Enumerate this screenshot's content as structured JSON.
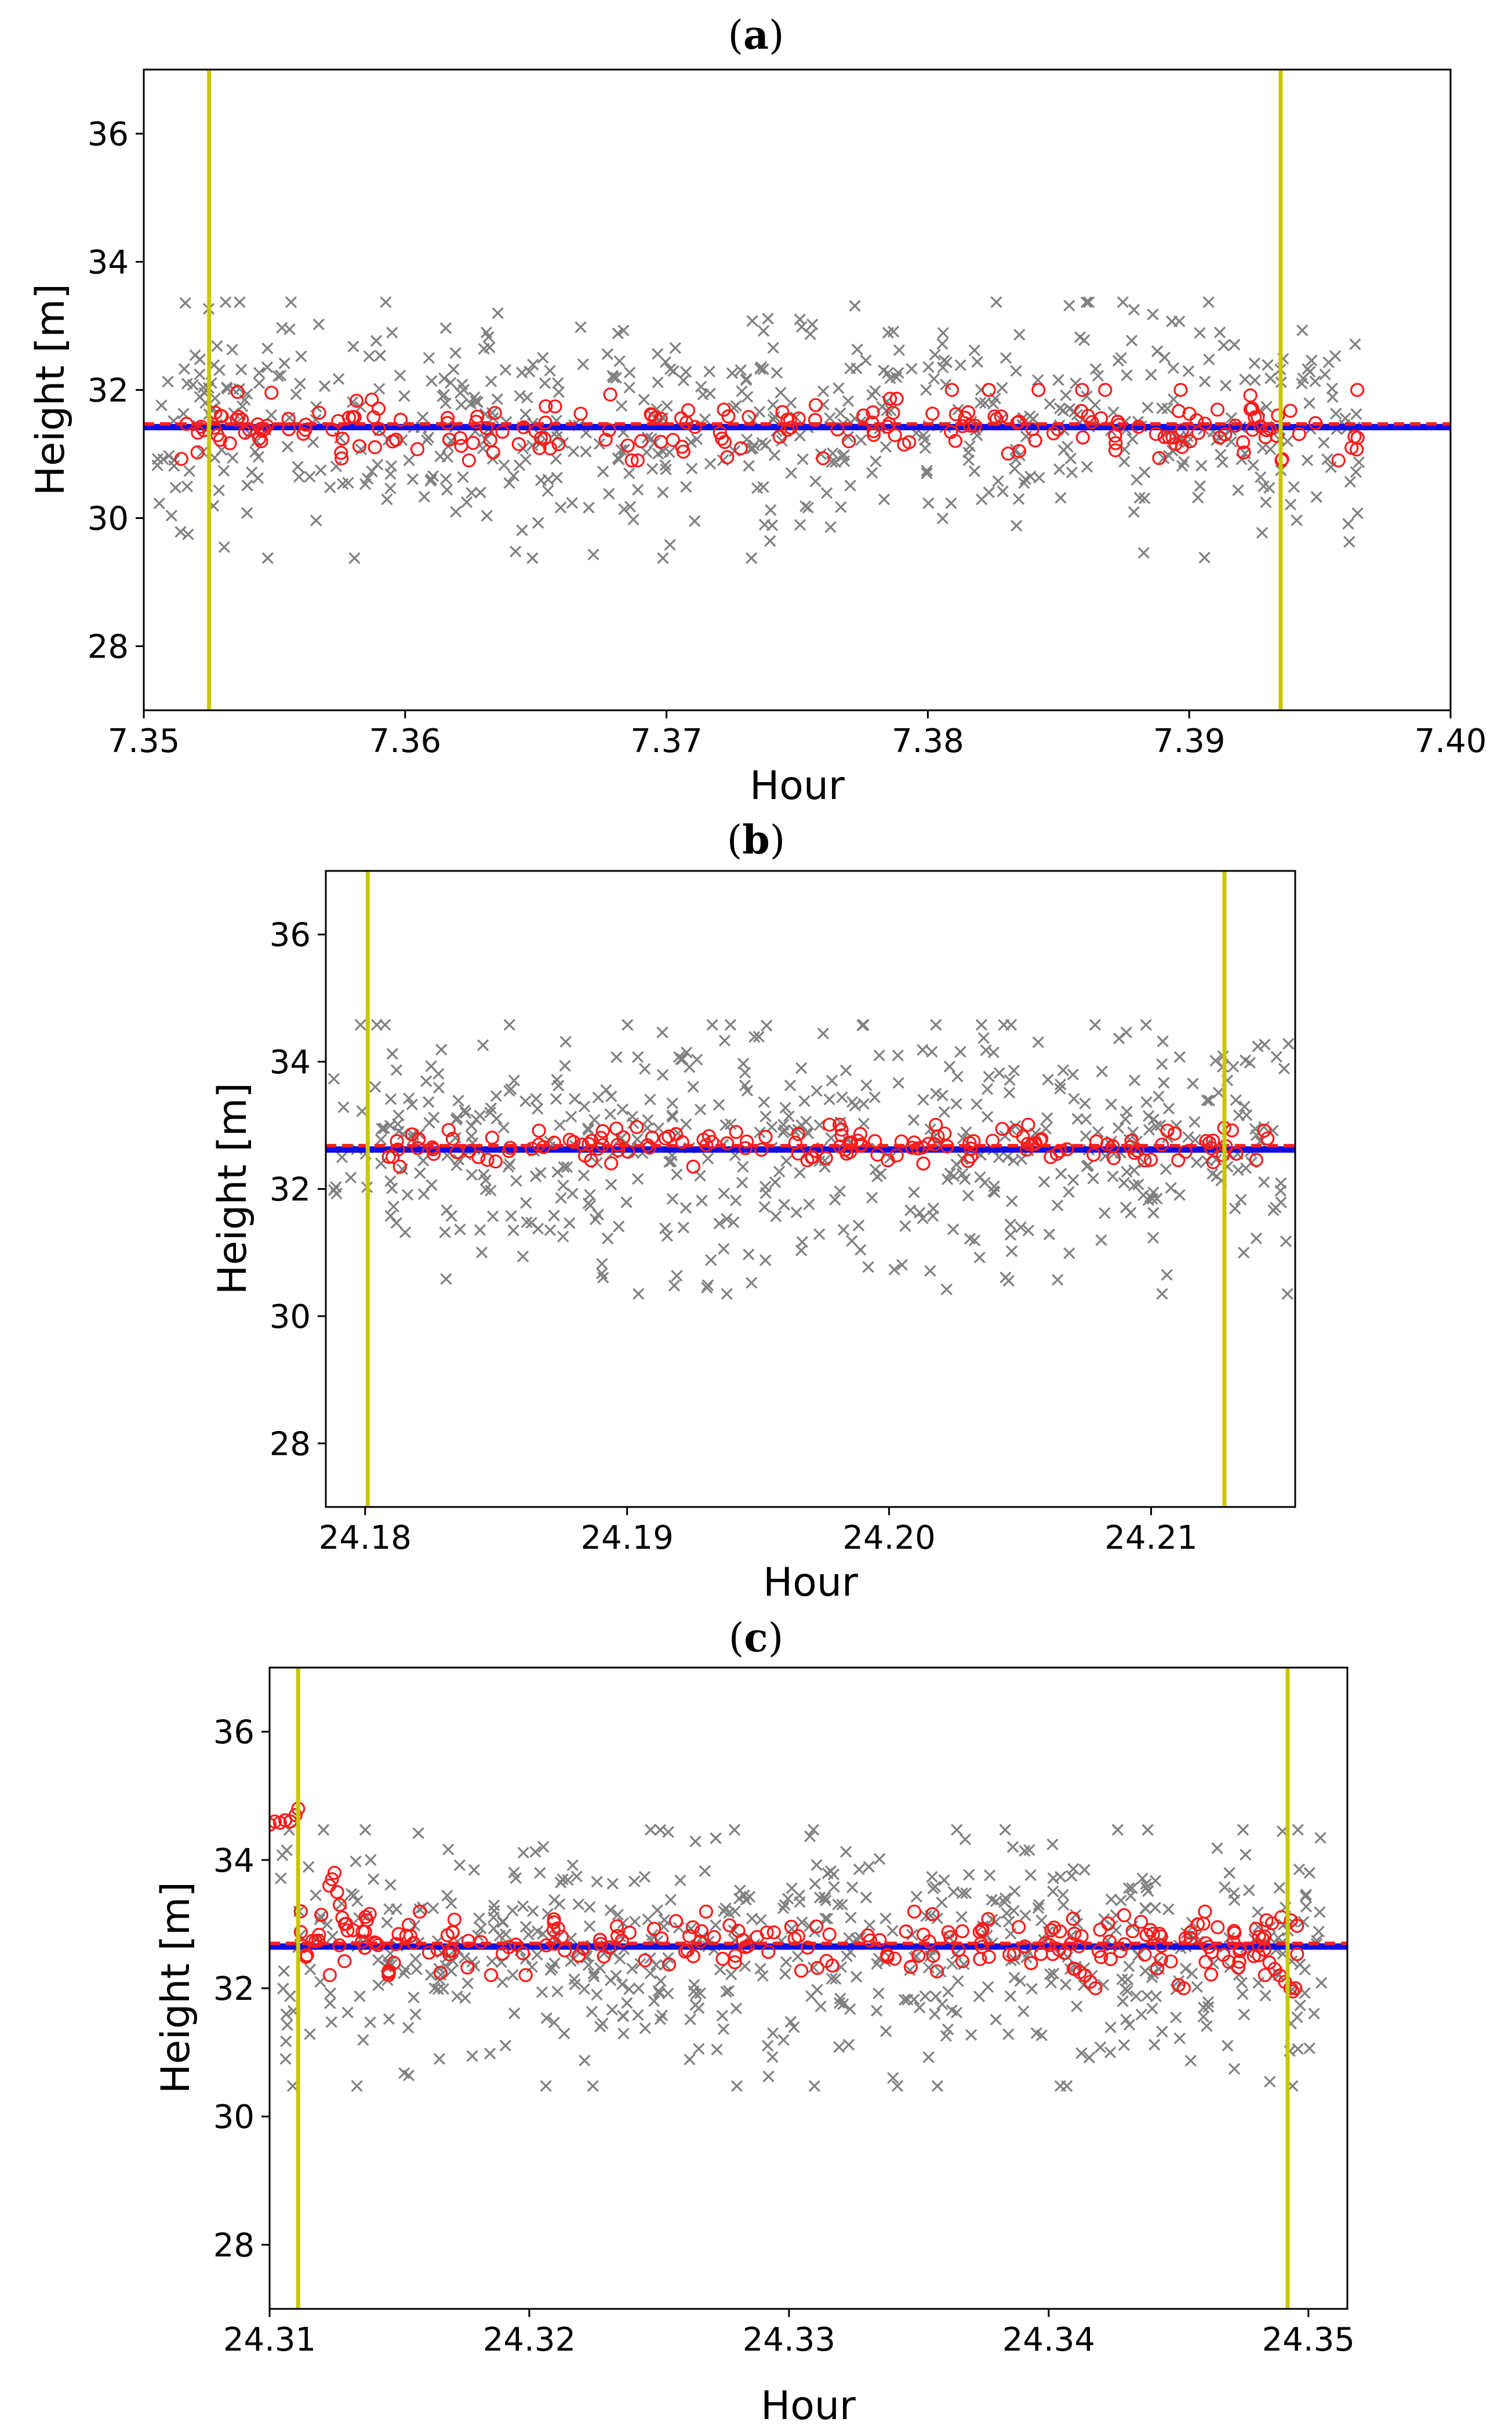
{
  "figure": {
    "description_free": true
  },
  "chart_data": [
    {
      "panel": "a",
      "type": "scatter",
      "title": "",
      "xlabel": "Hour",
      "ylabel": "Height [m]",
      "xlim": [
        7.35,
        7.4
      ],
      "ylim": [
        27,
        37
      ],
      "xticks": [
        7.35,
        7.36,
        7.37,
        7.38,
        7.39,
        7.4
      ],
      "xtick_labels": [
        "7.35",
        "7.36",
        "7.37",
        "7.38",
        "7.39",
        "7.40"
      ],
      "yticks": [
        28,
        30,
        32,
        34,
        36
      ],
      "ytick_labels": [
        "28",
        "30",
        "32",
        "34",
        "36"
      ],
      "vlines": [
        7.3525,
        7.3935
      ],
      "hline_blue": 31.42,
      "hline_red_dashed": 31.47,
      "gray_x": {
        "x_range": [
          7.3505,
          7.3965
        ],
        "center": 31.5,
        "spread": 1.7,
        "count": 620,
        "seed": 11
      },
      "red_o": {
        "x_range": [
          7.351,
          7.3965
        ],
        "center": 31.45,
        "spread": 0.5,
        "count": 210,
        "seed": 23
      }
    },
    {
      "panel": "b",
      "type": "scatter",
      "title": "",
      "xlabel": "Hour",
      "ylabel": "Height [m]",
      "xlim": [
        24.1785,
        24.2155
      ],
      "ylim": [
        27,
        37
      ],
      "xticks": [
        24.18,
        24.19,
        24.2,
        24.21
      ],
      "xtick_labels": [
        "24.18",
        "24.19",
        "24.20",
        "24.21"
      ],
      "yticks": [
        28,
        30,
        32,
        34,
        36
      ],
      "ytick_labels": [
        "28",
        "30",
        "32",
        "34",
        "36"
      ],
      "vlines": [
        24.1801,
        24.2128
      ],
      "hline_blue": 32.62,
      "hline_red_dashed": 32.68,
      "gray_x": {
        "x_range": [
          24.1787,
          24.2153
        ],
        "center": 32.6,
        "spread": 1.8,
        "count": 520,
        "seed": 37
      },
      "red_o": {
        "x_range": [
          24.1805,
          24.2145
        ],
        "center": 32.68,
        "spread": 0.3,
        "count": 150,
        "seed": 41
      }
    },
    {
      "panel": "c",
      "type": "scatter",
      "title": "",
      "xlabel": "Hour",
      "ylabel": "Height [m]",
      "xlim": [
        24.31,
        24.3515
      ],
      "ylim": [
        27,
        37
      ],
      "xticks": [
        24.31,
        24.32,
        24.33,
        24.34,
        24.35
      ],
      "xtick_labels": [
        "24.31",
        "24.32",
        "24.33",
        "24.34",
        "24.35"
      ],
      "yticks": [
        28,
        30,
        32,
        34,
        36
      ],
      "ytick_labels": [
        "28",
        "30",
        "32",
        "34",
        "36"
      ],
      "vlines": [
        24.3111,
        24.3492
      ],
      "hline_blue": 32.65,
      "hline_red_dashed": 32.7,
      "gray_x": {
        "x_range": [
          24.3102,
          24.3505
        ],
        "center": 32.6,
        "spread": 1.7,
        "count": 620,
        "seed": 53
      },
      "red_o": {
        "x_range": [
          24.3112,
          24.35
        ],
        "center": 32.7,
        "spread": 0.45,
        "count": 210,
        "seed": 67
      },
      "red_o_extra": [
        [
          24.31,
          34.55
        ],
        [
          24.3102,
          34.6
        ],
        [
          24.3104,
          34.58
        ],
        [
          24.3106,
          34.62
        ],
        [
          24.3108,
          34.6
        ],
        [
          24.311,
          34.7
        ],
        [
          24.3111,
          34.8
        ],
        [
          24.3112,
          33.2
        ],
        [
          24.3123,
          33.6
        ],
        [
          24.3124,
          33.7
        ],
        [
          24.3125,
          33.8
        ],
        [
          24.3126,
          33.5
        ],
        [
          24.3127,
          33.3
        ],
        [
          24.3128,
          33.1
        ],
        [
          24.3129,
          33.0
        ],
        [
          24.313,
          32.9
        ],
        [
          24.341,
          32.3
        ],
        [
          24.3412,
          32.25
        ],
        [
          24.3414,
          32.2
        ],
        [
          24.3416,
          32.1
        ],
        [
          24.3418,
          32.0
        ],
        [
          24.345,
          32.05
        ],
        [
          24.3452,
          32.0
        ],
        [
          24.3485,
          32.4
        ],
        [
          24.3487,
          32.3
        ],
        [
          24.3489,
          32.2
        ],
        [
          24.3491,
          32.1
        ],
        [
          24.3493,
          32.0
        ],
        [
          24.3494,
          31.95
        ],
        [
          24.3495,
          32.0
        ],
        [
          24.3483,
          32.6
        ],
        [
          24.3481,
          32.8
        ],
        [
          24.3479,
          32.5
        ]
      ]
    }
  ]
}
